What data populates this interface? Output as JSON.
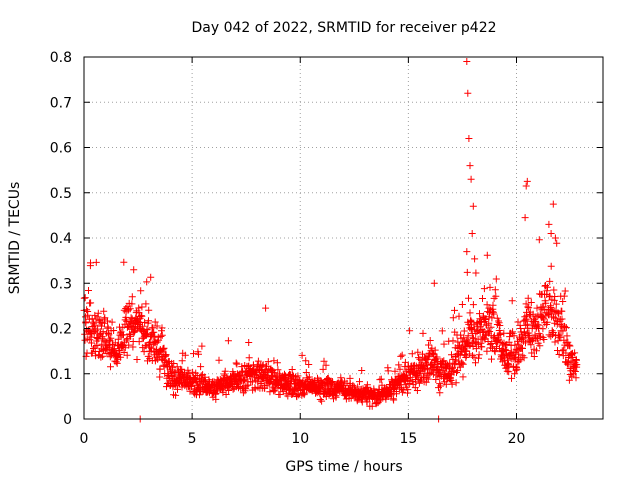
{
  "chart_data": {
    "type": "scatter",
    "title": "Day 042 of 2022, SRMTID for receiver p422",
    "xlabel": "GPS time / hours",
    "ylabel": "SRMTID / TECUs",
    "xlim": [
      0,
      24
    ],
    "ylim": [
      0,
      0.8
    ],
    "xticks": [
      0,
      5,
      10,
      15,
      20
    ],
    "xtick_labels": [
      "0",
      "5",
      "10",
      "15",
      "20"
    ],
    "yticks": [
      0,
      0.1,
      0.2,
      0.3,
      0.4,
      0.5,
      0.6,
      0.7,
      0.8
    ],
    "ytick_labels": [
      "0",
      "0.1",
      "0.2",
      "0.3",
      "0.4",
      "0.5",
      "0.6",
      "0.7",
      "0.8"
    ],
    "grid": true,
    "marker": "+",
    "series_color": "#ff0000",
    "data_extent_hours": [
      0,
      22.8
    ],
    "trend": {
      "x": [
        0,
        0.5,
        1,
        1.5,
        2,
        2.5,
        3,
        3.5,
        4,
        5,
        6,
        7,
        8,
        9,
        10,
        11,
        12,
        13,
        13.5,
        14,
        15,
        16,
        17,
        17.5,
        18,
        18.5,
        19,
        19.5,
        20,
        20.5,
        21,
        21.5,
        22,
        22.5,
        22.8
      ],
      "y": [
        0.2,
        0.19,
        0.17,
        0.15,
        0.2,
        0.21,
        0.18,
        0.15,
        0.09,
        0.08,
        0.07,
        0.085,
        0.1,
        0.08,
        0.075,
        0.07,
        0.065,
        0.055,
        0.045,
        0.06,
        0.1,
        0.12,
        0.1,
        0.15,
        0.2,
        0.18,
        0.21,
        0.14,
        0.14,
        0.2,
        0.2,
        0.25,
        0.22,
        0.12,
        0.12
      ]
    },
    "peaks": [
      {
        "x": 17.7,
        "y": 0.79
      },
      {
        "x": 17.75,
        "y": 0.72
      },
      {
        "x": 17.8,
        "y": 0.62
      },
      {
        "x": 17.85,
        "y": 0.56
      },
      {
        "x": 17.9,
        "y": 0.53
      },
      {
        "x": 18.0,
        "y": 0.47
      },
      {
        "x": 17.95,
        "y": 0.41
      },
      {
        "x": 17.7,
        "y": 0.37
      },
      {
        "x": 20.5,
        "y": 0.525
      },
      {
        "x": 20.45,
        "y": 0.515
      },
      {
        "x": 20.4,
        "y": 0.445
      },
      {
        "x": 21.7,
        "y": 0.475
      },
      {
        "x": 21.5,
        "y": 0.43
      },
      {
        "x": 21.6,
        "y": 0.41
      },
      {
        "x": 21.8,
        "y": 0.4
      },
      {
        "x": 0.3,
        "y": 0.345
      },
      {
        "x": 2.3,
        "y": 0.33
      },
      {
        "x": 16.2,
        "y": 0.3
      },
      {
        "x": 8.4,
        "y": 0.245
      },
      {
        "x": 2.6,
        "y": 0.0
      },
      {
        "x": 16.4,
        "y": 0.0
      }
    ]
  }
}
